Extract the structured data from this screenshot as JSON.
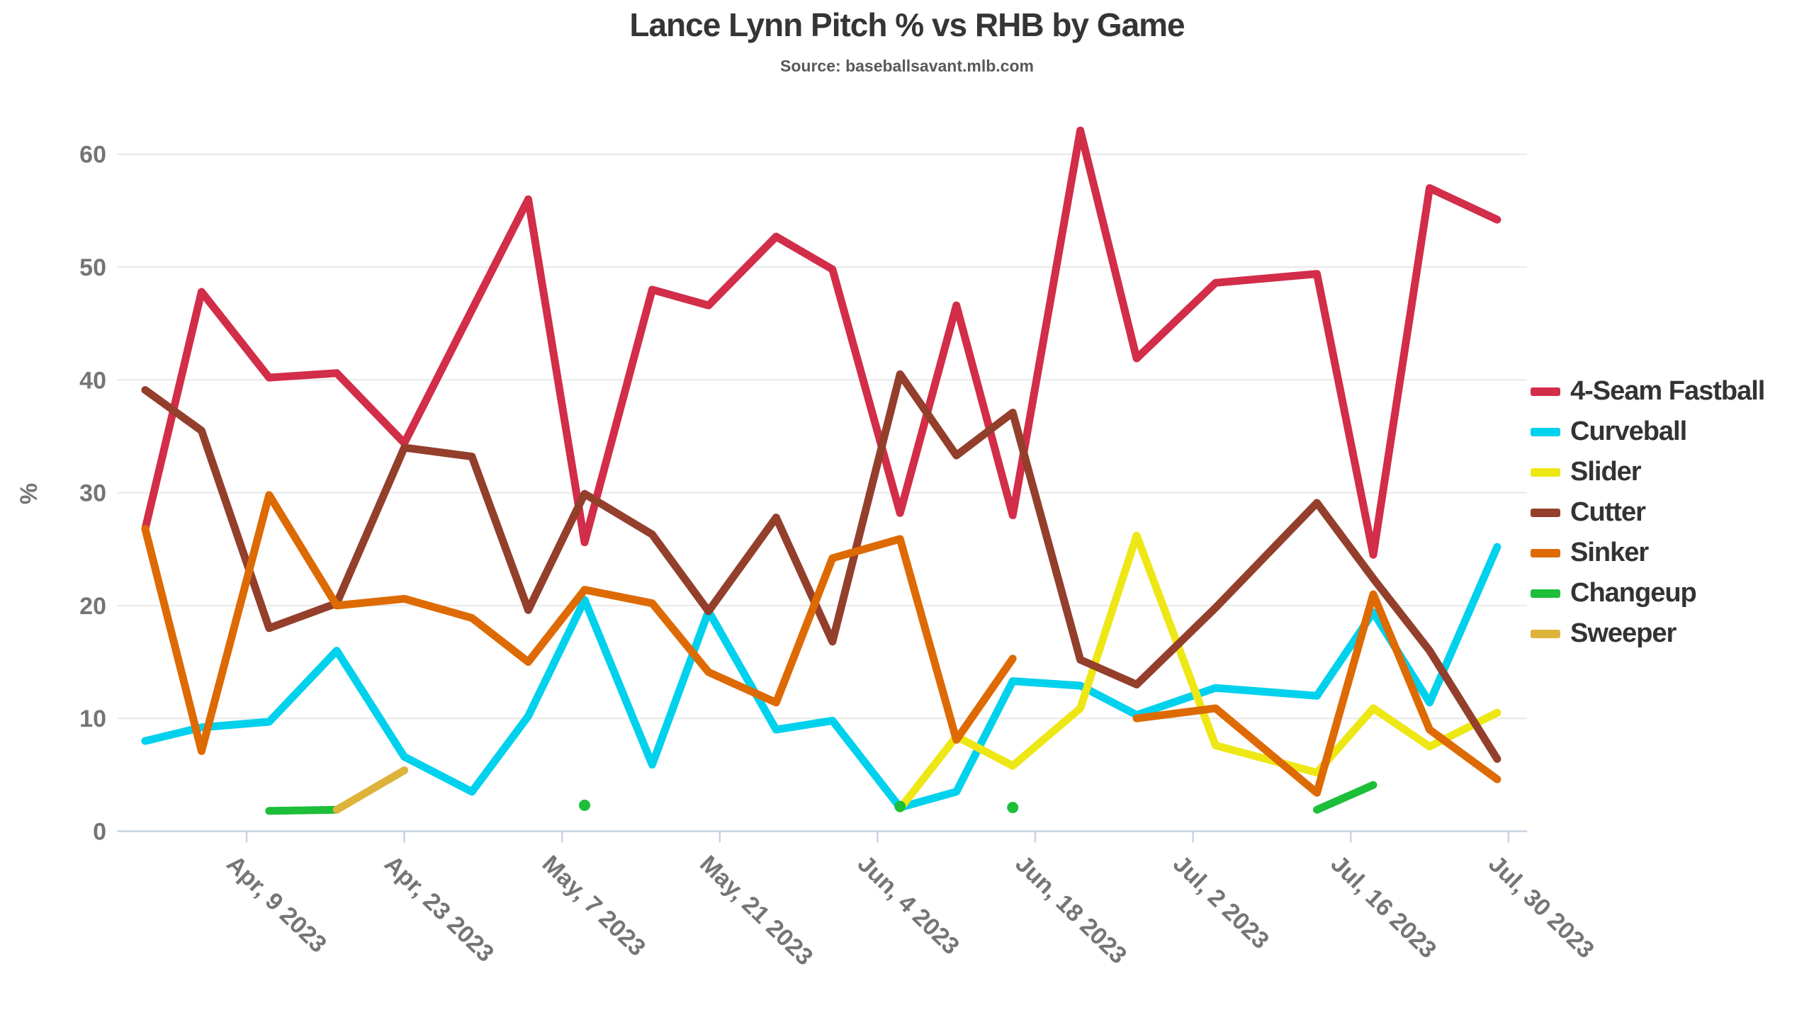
{
  "title": "Lance Lynn Pitch % vs RHB by Game",
  "subtitle": "Source: baseballsavant.mlb.com",
  "y_axis": {
    "label": "%",
    "ticks": [
      0,
      10,
      20,
      30,
      40,
      50,
      60
    ]
  },
  "x_axis": {
    "ticks": [
      {
        "label": "Apr, 9 2023",
        "date": "Apr 9"
      },
      {
        "label": "Apr, 23 2023",
        "date": "Apr 23"
      },
      {
        "label": "May, 7 2023",
        "date": "May 7"
      },
      {
        "label": "May, 21 2023",
        "date": "May 21"
      },
      {
        "label": "Jun, 4 2023",
        "date": "Jun 4"
      },
      {
        "label": "Jun, 18 2023",
        "date": "Jun 18"
      },
      {
        "label": "Jul, 2 2023",
        "date": "Jul 2"
      },
      {
        "label": "Jul, 16 2023",
        "date": "Jul 16"
      },
      {
        "label": "Jul, 30 2023",
        "date": "Jul 30"
      }
    ]
  },
  "chart_data": {
    "type": "line",
    "title": "Lance Lynn Pitch % vs RHB by Game",
    "subtitle": "Source: baseballsavant.mlb.com",
    "xlabel": "",
    "ylabel": "%",
    "ylim": [
      0,
      64
    ],
    "grid": true,
    "legend_position": "right",
    "year": 2023,
    "x_game_dates": [
      "Mar 31",
      "Apr 5",
      "Apr 11",
      "Apr 17",
      "Apr 23",
      "Apr 29",
      "May 4",
      "May 9",
      "May 15",
      "May 20",
      "May 26",
      "May 31",
      "Jun 6",
      "Jun 11",
      "Jun 16",
      "Jun 22",
      "Jun 27",
      "Jul 4",
      "Jul 13",
      "Jul 18",
      "Jul 23",
      "Jul 29"
    ],
    "series": [
      {
        "name": "4-Seam Fastball",
        "color": "#d22d49",
        "values": [
          26.8,
          47.8,
          40.2,
          40.6,
          34.4,
          46.2,
          56.0,
          25.6,
          48.0,
          46.6,
          52.7,
          49.8,
          28.2,
          46.6,
          28.0,
          62.1,
          41.9,
          48.6,
          49.4,
          24.5,
          57.0,
          54.2
        ]
      },
      {
        "name": "Curveball",
        "color": "#00d1ed",
        "values": [
          8.0,
          9.2,
          9.7,
          16.0,
          6.6,
          3.5,
          10.2,
          20.5,
          5.9,
          19.5,
          9.0,
          9.8,
          2.1,
          3.5,
          13.3,
          12.9,
          10.3,
          12.7,
          12.0,
          19.4,
          11.4,
          25.2
        ]
      },
      {
        "name": "Slider",
        "color": "#eee716",
        "values": [
          null,
          null,
          null,
          null,
          null,
          null,
          null,
          null,
          null,
          null,
          null,
          null,
          2.0,
          8.4,
          5.8,
          10.9,
          26.2,
          7.6,
          5.2,
          10.9,
          7.5,
          10.5
        ]
      },
      {
        "name": "Cutter",
        "color": "#933f2c",
        "values": [
          39.1,
          35.5,
          18.0,
          20.2,
          34.0,
          33.2,
          19.6,
          29.9,
          26.3,
          19.5,
          27.8,
          16.8,
          40.5,
          33.3,
          37.1,
          15.2,
          13.0,
          19.8,
          29.1,
          22.4,
          16.0,
          6.4
        ]
      },
      {
        "name": "Sinker",
        "color": "#de6a04",
        "values": [
          26.8,
          7.1,
          29.8,
          20.0,
          20.6,
          18.9,
          15.0,
          21.4,
          20.2,
          14.1,
          11.4,
          24.2,
          25.9,
          8.1,
          15.3,
          null,
          10.0,
          10.9,
          3.4,
          21.0,
          9.0,
          4.6
        ]
      },
      {
        "name": "Changeup",
        "color": "#1dbe3a",
        "values": [
          null,
          null,
          1.8,
          1.9,
          null,
          null,
          null,
          2.3,
          null,
          null,
          null,
          null,
          2.2,
          null,
          2.1,
          null,
          null,
          null,
          1.9,
          4.1,
          null,
          null
        ]
      },
      {
        "name": "Sweeper",
        "color": "#ddb33a",
        "values": [
          null,
          null,
          null,
          1.9,
          5.4,
          null,
          null,
          null,
          null,
          null,
          null,
          null,
          null,
          null,
          null,
          null,
          null,
          null,
          null,
          null,
          null,
          null
        ]
      }
    ],
    "layout_colors": {
      "grid_color": "#e8e8e8",
      "axis_line_color": "#c8d4e3",
      "tick_text_color": "#757575",
      "title_color": "#353535",
      "subtitle_color": "#595959",
      "legend_text_color": "#333333"
    }
  }
}
